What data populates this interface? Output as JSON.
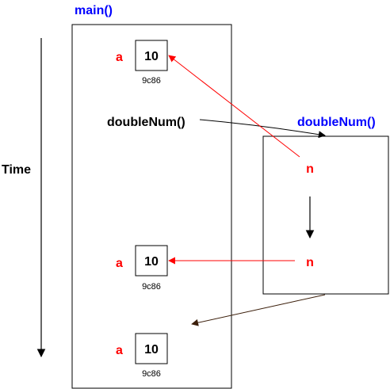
{
  "time_label": "Time",
  "main_frame": {
    "title": "main()"
  },
  "call_label": "doubleNum()",
  "double_frame": {
    "title": "doubleNum()"
  },
  "rows": [
    {
      "var": "a",
      "value": "10",
      "address": "9c86"
    },
    {
      "var": "a",
      "value": "10",
      "address": "9c86"
    },
    {
      "var": "a",
      "value": "10",
      "address": "9c86"
    }
  ],
  "param_labels": [
    "n",
    "n"
  ],
  "colors": {
    "title_blue": "#0000ff",
    "var_red": "#ff0000",
    "pointer_red": "#ff0000",
    "text_black": "#000000",
    "return_brown": "#3b1e0a"
  }
}
